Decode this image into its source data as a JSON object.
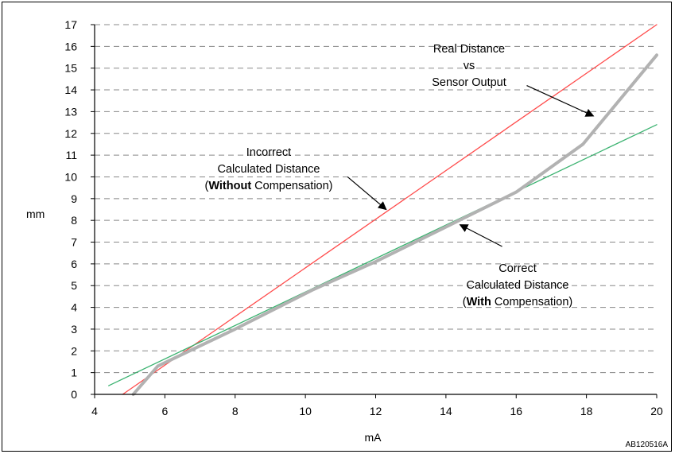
{
  "chart_data": {
    "type": "line",
    "xlabel": "mA",
    "ylabel": "mm",
    "xlim": [
      4,
      20
    ],
    "ylim": [
      0,
      17
    ],
    "x_ticks": [
      "4",
      "6",
      "8",
      "10",
      "12",
      "14",
      "16",
      "18",
      "20"
    ],
    "y_ticks": [
      "0",
      "1",
      "2",
      "3",
      "4",
      "5",
      "6",
      "7",
      "8",
      "9",
      "10",
      "11",
      "12",
      "13",
      "14",
      "15",
      "16",
      "17"
    ],
    "grid": "horizontal dashed",
    "series": [
      {
        "color": "#ff4b4b",
        "points": [
          [
            4.8,
            0
          ],
          [
            20,
            17
          ]
        ]
      },
      {
        "color": "#3cb371",
        "points": [
          [
            4.4,
            0.4
          ],
          [
            20,
            12.4
          ]
        ]
      },
      {
        "color": "#b2b2b2",
        "points": [
          [
            5.1,
            0
          ],
          [
            5.8,
            1.3
          ],
          [
            8.0,
            3.0
          ],
          [
            10.2,
            4.8
          ],
          [
            12.0,
            6.1
          ],
          [
            14.0,
            7.7
          ],
          [
            16.0,
            9.3
          ],
          [
            17.9,
            11.5
          ],
          [
            20.0,
            15.6
          ]
        ]
      }
    ],
    "annotations": [
      {
        "lines": [
          [
            "Real Distance"
          ],
          [
            "vs"
          ],
          [
            "Sensor Output"
          ]
        ],
        "arrow": {
          "from": [
            16.3,
            14.2
          ],
          "to": [
            18.2,
            12.8
          ]
        }
      },
      {
        "lines": [
          [
            "Incorrect"
          ],
          [
            "Calculated Distance"
          ],
          [
            "(",
            "Without",
            " Compensation)"
          ]
        ],
        "arrow": {
          "from": [
            11.2,
            10.0
          ],
          "to": [
            12.3,
            8.5
          ]
        }
      },
      {
        "lines": [
          [
            "Correct"
          ],
          [
            "Calculated Distance"
          ],
          [
            "(",
            "With",
            " Compensation)"
          ]
        ],
        "arrow": {
          "from": [
            15.6,
            6.8
          ],
          "to": [
            14.4,
            7.8
          ]
        }
      }
    ],
    "reference_code": "AB120516A"
  }
}
